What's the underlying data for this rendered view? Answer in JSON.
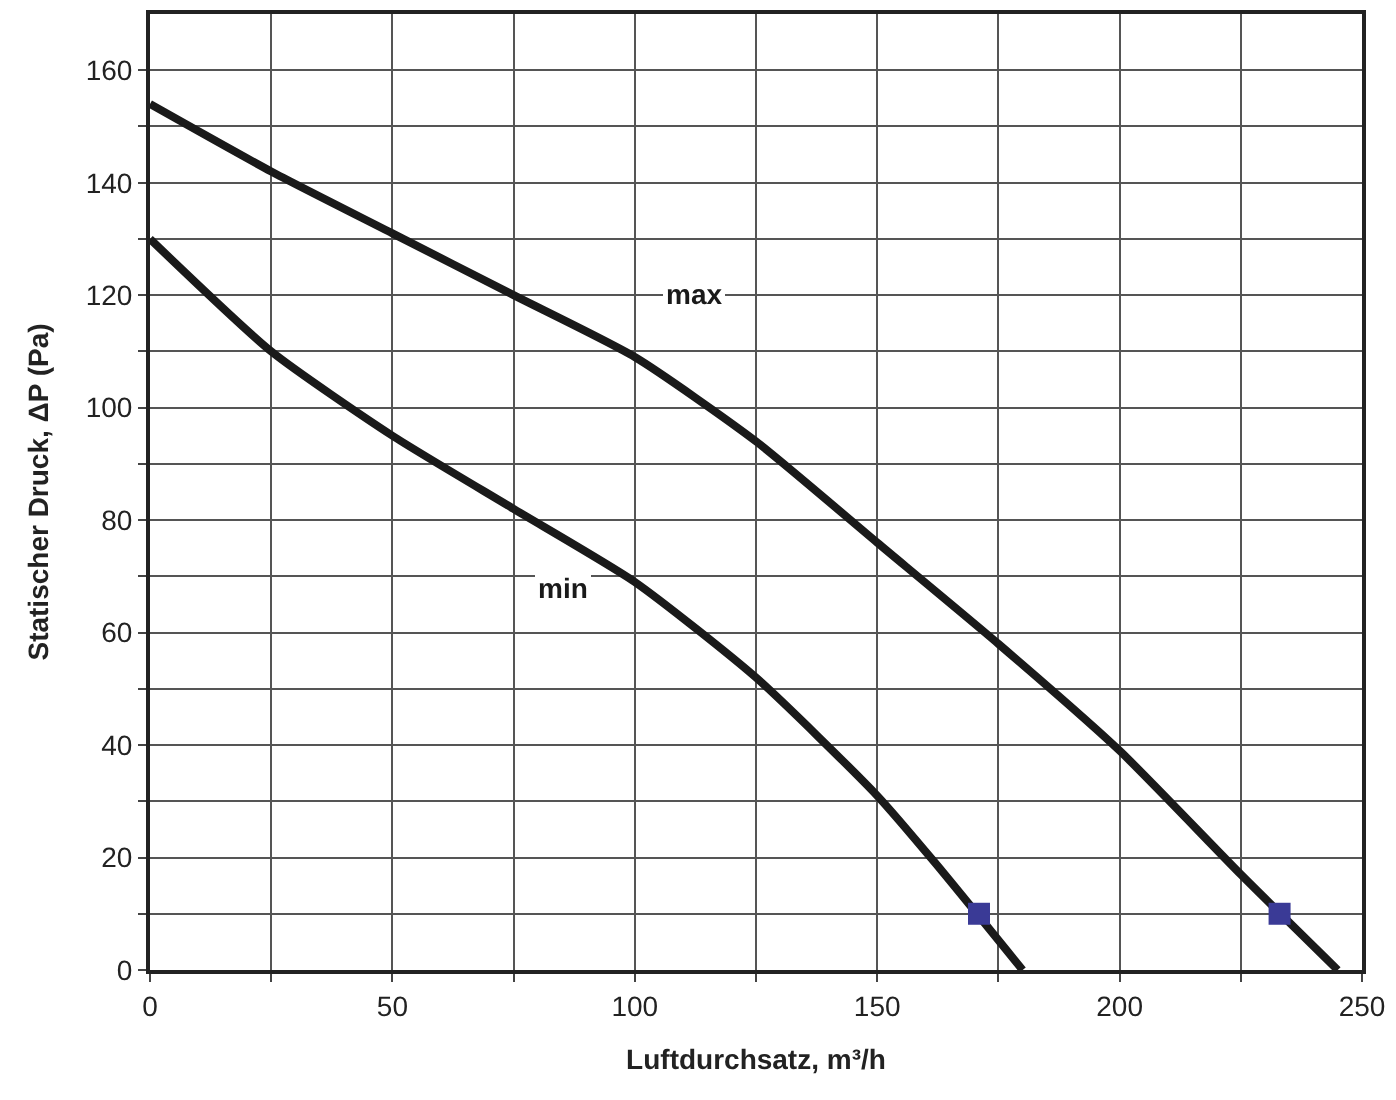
{
  "chart_data": {
    "type": "line",
    "xlabel": "Luftdurchsatz, m³/h",
    "ylabel": "Statischer Druck, ΔP (Pa)",
    "xlim": [
      0,
      250
    ],
    "ylim": [
      0,
      170
    ],
    "xticks": [
      0,
      {
        "value": 25,
        "label": null
      },
      50,
      {
        "value": 75,
        "label": null
      },
      100,
      {
        "value": 125,
        "label": null
      },
      150,
      {
        "value": 175,
        "label": null
      },
      200,
      {
        "value": 225,
        "label": null
      },
      250
    ],
    "yticks": [
      0,
      {
        "value": 10,
        "label": null
      },
      20,
      {
        "value": 30,
        "label": null
      },
      40,
      {
        "value": 50,
        "label": null
      },
      60,
      {
        "value": 70,
        "label": null
      },
      80,
      {
        "value": 90,
        "label": null
      },
      100,
      {
        "value": 110,
        "label": null
      },
      120,
      {
        "value": 130,
        "label": null
      },
      140,
      {
        "value": 150,
        "label": null
      },
      160
    ],
    "grid": true,
    "line_style": "solid",
    "marker": "none",
    "series": [
      {
        "name": "max",
        "color": "#1a1a1a",
        "x": [
          0,
          25,
          50,
          75,
          100,
          125,
          150,
          175,
          200,
          225,
          245
        ],
        "values": [
          154,
          142,
          131,
          120,
          109,
          94,
          76,
          58,
          39,
          17,
          0
        ]
      },
      {
        "name": "min",
        "color": "#1a1a1a",
        "x": [
          0,
          25,
          50,
          75,
          100,
          125,
          150,
          162,
          180
        ],
        "values": [
          130,
          110,
          95,
          82,
          69,
          52,
          31,
          19,
          0
        ]
      },
      {
        "type": "scatter",
        "marker": "square",
        "color": "#3a3a96",
        "x": [
          171,
          233
        ],
        "values": [
          10,
          10
        ]
      }
    ]
  }
}
